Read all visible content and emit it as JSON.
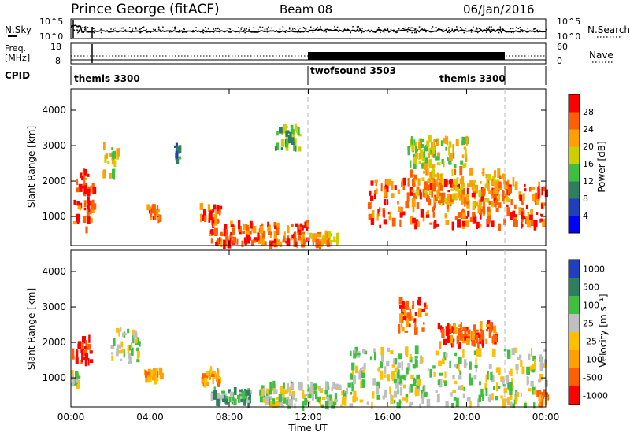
{
  "header": {
    "station": "Prince George (fitACF)",
    "beam": "Beam 08",
    "date": "06/Jan/2016"
  },
  "noise_panel": {
    "left_label": "N.Sky",
    "right_label": "N.Search",
    "left_ticks": [
      "10^5",
      "10^0"
    ],
    "right_ticks": [
      "10^5",
      "10^0"
    ]
  },
  "freq_panel": {
    "left_label_line1": "Freq.",
    "left_label_line2": "[MHz]",
    "left_ticks": [
      "18",
      "8"
    ],
    "right_label": "Nave",
    "right_ticks": [
      "60",
      "0"
    ]
  },
  "cpid_panel": {
    "label": "CPID",
    "segments": [
      {
        "label": "themis 3300",
        "start_hour": 0,
        "end_hour": 12
      },
      {
        "label": "twofsound 3503",
        "start_hour": 12,
        "end_hour": 22
      },
      {
        "label": "themis 3300",
        "start_hour": 22,
        "end_hour": 24
      }
    ]
  },
  "x_axis": {
    "label": "Time UT",
    "ticks": [
      "00:00",
      "04:00",
      "08:00",
      "12:00",
      "16:00",
      "20:00",
      "00:00"
    ]
  },
  "power_panel": {
    "ylabel": "Slant Range [km]",
    "yticks": [
      "1000",
      "2000",
      "3000",
      "4000"
    ],
    "colorbar_label": "Power [dB]",
    "colorbar_ticks": [
      "4",
      "8",
      "12",
      "16",
      "20",
      "24",
      "28"
    ],
    "colors": [
      "#0000ff",
      "#1f3fbf",
      "#2f7f5f",
      "#3fbf3f",
      "#cfcf00",
      "#ff9f00",
      "#ff5f00",
      "#ff0000"
    ]
  },
  "velocity_panel": {
    "ylabel": "Slant Range [km]",
    "yticks": [
      "1000",
      "2000",
      "3000",
      "4000"
    ],
    "colorbar_label": "Velocity [m s⁻¹]",
    "colorbar_ticks": [
      "1000",
      "500",
      "100",
      "25",
      "-25",
      "-100",
      "-500",
      "-1000"
    ],
    "colors": [
      "#1f3fbf",
      "#2f7f5f",
      "#3fbf3f",
      "#bfbfbf",
      "#ffbf00",
      "#ff9f00",
      "#ff5f00",
      "#ff0000"
    ],
    "ground_scatter_color": "#bfbfbf"
  },
  "chart_data": {
    "type": "heatmap",
    "x_range_hours": [
      0,
      24
    ],
    "y_range_km": [
      180,
      4600
    ],
    "power_regions": [
      {
        "t0": 0.0,
        "t1": 1.2,
        "r0": 600,
        "r1": 2300,
        "level": 6
      },
      {
        "t0": 0.5,
        "t1": 1.1,
        "r0": 1100,
        "r1": 1900,
        "level": 7
      },
      {
        "t0": 1.6,
        "t1": 2.3,
        "r0": 2100,
        "r1": 3000,
        "level": 4
      },
      {
        "t0": 3.8,
        "t1": 4.5,
        "r0": 900,
        "r1": 1300,
        "level": 6
      },
      {
        "t0": 5.2,
        "t1": 5.5,
        "r0": 2500,
        "r1": 3000,
        "level": 2
      },
      {
        "t0": 6.5,
        "t1": 7.5,
        "r0": 800,
        "r1": 1300,
        "level": 6
      },
      {
        "t0": 7.0,
        "t1": 12.0,
        "r0": 200,
        "r1": 800,
        "level": 6
      },
      {
        "t0": 10.3,
        "t1": 11.5,
        "r0": 2900,
        "r1": 3600,
        "level": 3
      },
      {
        "t0": 12.0,
        "t1": 13.5,
        "r0": 200,
        "r1": 500,
        "level": 5
      },
      {
        "t0": 15.0,
        "t1": 24.0,
        "r0": 700,
        "r1": 2000,
        "level": 6
      },
      {
        "t0": 17.0,
        "t1": 22.0,
        "r0": 1300,
        "r1": 2300,
        "level": 5
      },
      {
        "t0": 17.0,
        "t1": 20.0,
        "r0": 2400,
        "r1": 3200,
        "level": 4
      }
    ],
    "velocity_regions": [
      {
        "t0": 0.0,
        "t1": 1.0,
        "r0": 1400,
        "r1": 2100,
        "level": 7
      },
      {
        "t0": 0.0,
        "t1": 0.5,
        "r0": 800,
        "r1": 1200,
        "level": 3
      },
      {
        "t0": 2.0,
        "t1": 3.5,
        "r0": 1400,
        "r1": 2400,
        "level": 3
      },
      {
        "t0": 3.7,
        "t1": 4.5,
        "r0": 900,
        "r1": 1200,
        "level": 5
      },
      {
        "t0": 6.5,
        "t1": 7.5,
        "r0": 800,
        "r1": 1200,
        "level": 5
      },
      {
        "t0": 7.0,
        "t1": 9.0,
        "r0": 250,
        "r1": 650,
        "level": 2
      },
      {
        "t0": 9.5,
        "t1": 14.0,
        "r0": 200,
        "r1": 800,
        "level": 3
      },
      {
        "t0": 14.0,
        "t1": 24.0,
        "r0": 200,
        "r1": 1800,
        "level": 3
      },
      {
        "t0": 16.5,
        "t1": 18.0,
        "r0": 2300,
        "r1": 3200,
        "level": 6
      },
      {
        "t0": 18.5,
        "t1": 21.5,
        "r0": 1900,
        "r1": 2500,
        "level": 6
      },
      {
        "t0": 23.5,
        "t1": 24.0,
        "r0": 200,
        "r1": 600,
        "level": 5
      }
    ]
  }
}
